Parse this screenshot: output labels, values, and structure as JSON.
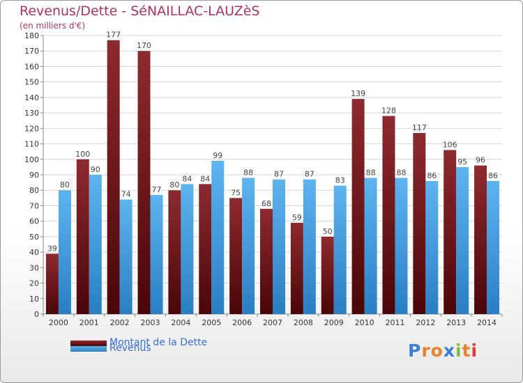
{
  "header": {
    "title": "Revenus/Dette - SéNAILLAC-LAUZèS",
    "subtitle": "(en milliers d'€)"
  },
  "logo": {
    "text": "Proxiti"
  },
  "chart_data": {
    "type": "bar",
    "title": "Revenus/Dette - SéNAILLAC-LAUZèS",
    "subtitle": "(en milliers d'€)",
    "categories": [
      "2000",
      "2001",
      "2002",
      "2003",
      "2004",
      "2005",
      "2006",
      "2007",
      "2008",
      "2009",
      "2010",
      "2011",
      "2012",
      "2013",
      "2014"
    ],
    "series": [
      {
        "name": "Montant de la Dette",
        "color": "#7a1a1f",
        "values": [
          39,
          100,
          177,
          170,
          80,
          84,
          75,
          68,
          59,
          50,
          139,
          128,
          117,
          106,
          96
        ]
      },
      {
        "name": "Revenus",
        "color": "#4ba3e3",
        "values": [
          80,
          90,
          74,
          77,
          84,
          99,
          88,
          87,
          87,
          83,
          88,
          88,
          86,
          95,
          86
        ]
      }
    ],
    "ylim": [
      0,
      180
    ],
    "yticks": [
      0,
      10,
      20,
      30,
      40,
      50,
      60,
      70,
      80,
      90,
      100,
      110,
      120,
      130,
      140,
      150,
      160,
      170,
      180
    ],
    "grid": true,
    "legend": "bottom-left",
    "data_labels": true
  }
}
